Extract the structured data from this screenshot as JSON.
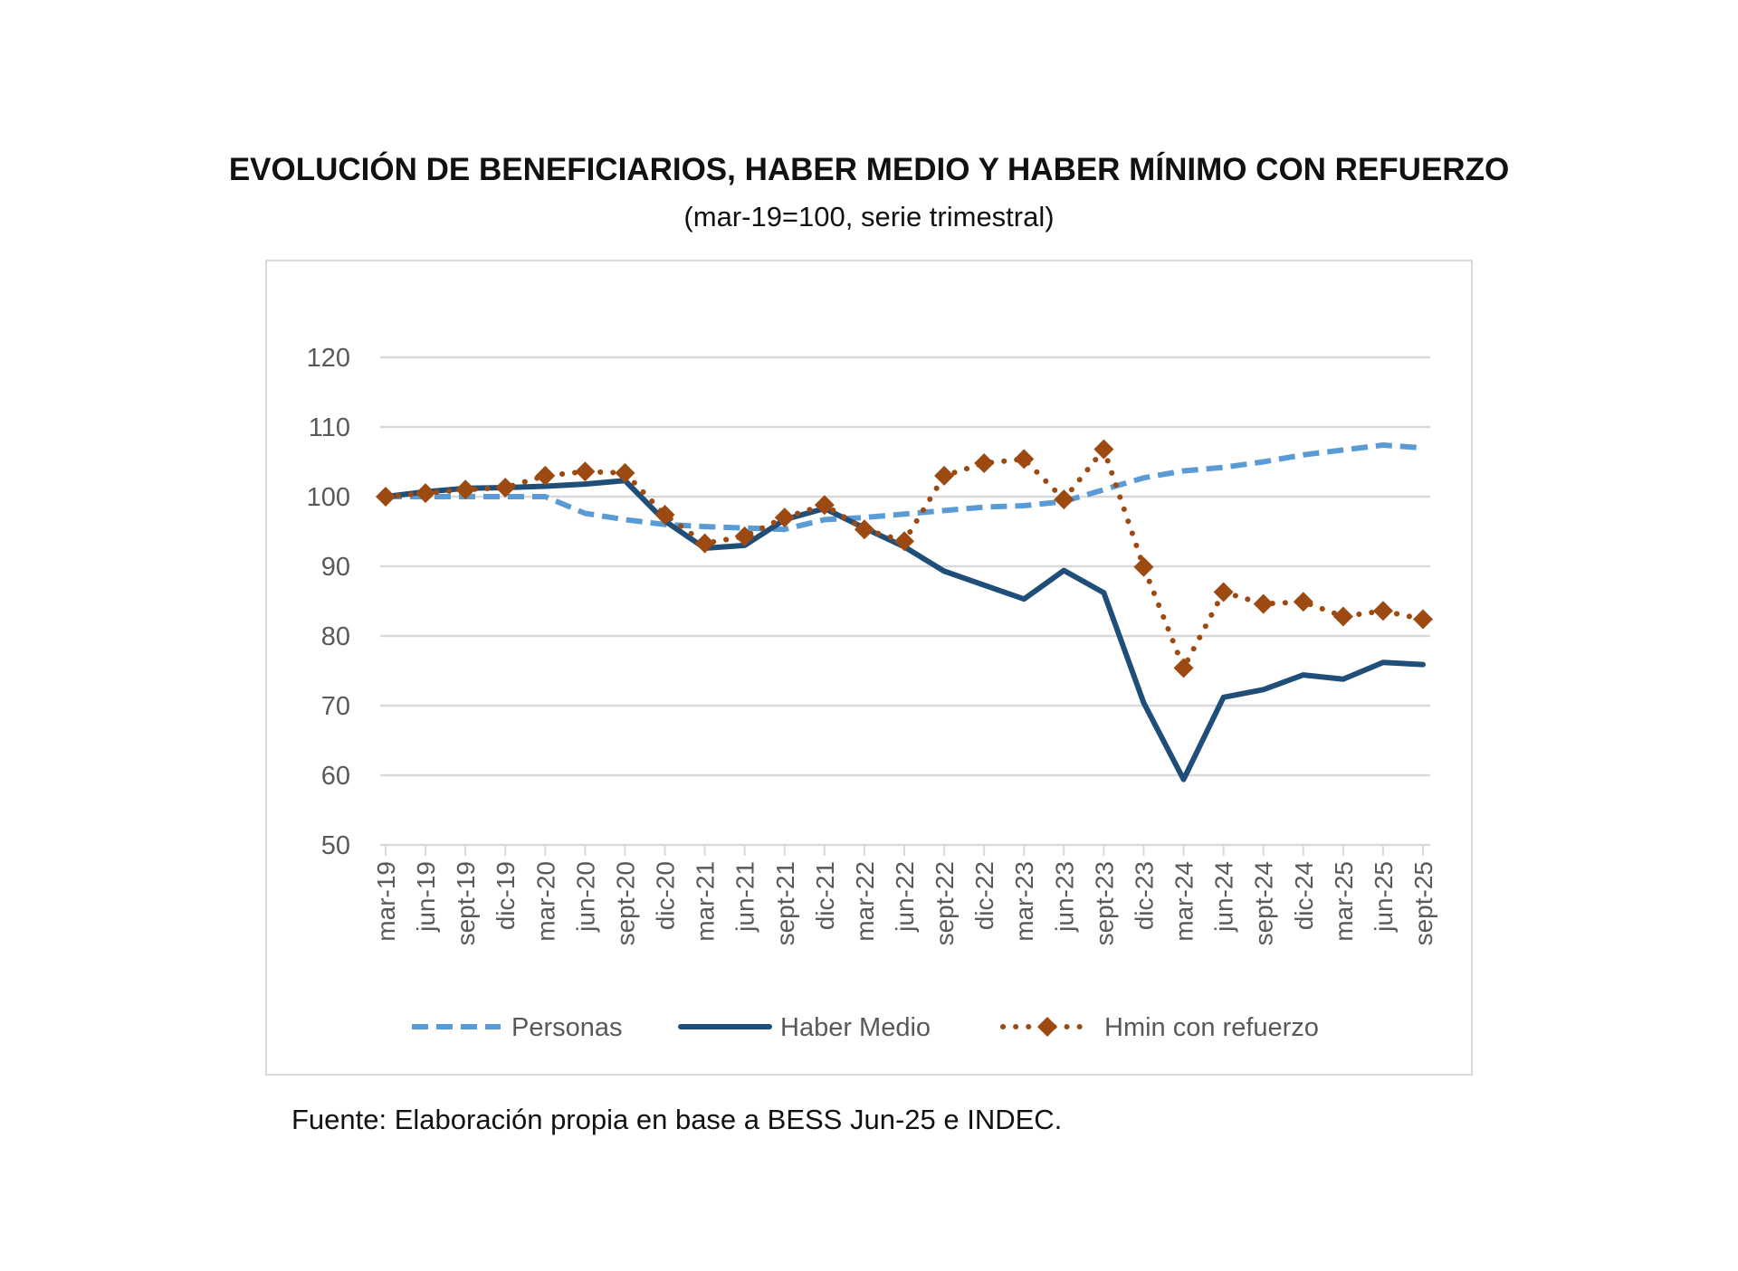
{
  "chart_data": {
    "type": "line",
    "title": "EVOLUCIÓN DE BENEFICIARIOS, HABER MEDIO Y HABER MÍNIMO CON REFUERZO",
    "subtitle": "(mar-19=100, serie trimestral)",
    "xlabel": "",
    "ylabel": "",
    "ylim": [
      50,
      120
    ],
    "yticks": [
      50,
      60,
      70,
      80,
      90,
      100,
      110,
      120
    ],
    "grid": true,
    "legend_position": "bottom",
    "categories": [
      "mar-19",
      "jun-19",
      "sept-19",
      "dic-19",
      "mar-20",
      "jun-20",
      "sept-20",
      "dic-20",
      "mar-21",
      "jun-21",
      "sept-21",
      "dic-21",
      "mar-22",
      "jun-22",
      "sept-22",
      "dic-22",
      "mar-23",
      "jun-23",
      "sept-23",
      "dic-23",
      "mar-24",
      "jun-24",
      "sept-24",
      "dic-24",
      "mar-25",
      "jun-25",
      "sept-25"
    ],
    "series": [
      {
        "name": "Personas",
        "color": "#5b9bd5",
        "style": "dashed",
        "values": [
          100,
          100,
          100,
          100,
          100,
          97.6,
          96.7,
          96,
          95.7,
          95.5,
          95.3,
          96.7,
          97,
          97.5,
          98,
          98.5,
          98.7,
          99.3,
          101,
          102.7,
          103.7,
          104.2,
          105,
          106,
          106.7,
          107.4,
          107
        ]
      },
      {
        "name": "Haber Medio",
        "color": "#1f4e79",
        "style": "solid",
        "values": [
          100,
          100.7,
          101.2,
          101.3,
          101.5,
          101.8,
          102.3,
          96.5,
          92.6,
          93,
          96.7,
          98.3,
          95.5,
          92.8,
          89.3,
          87.3,
          85.3,
          89.4,
          86.2,
          70.4,
          59.4,
          71.2,
          72.3,
          74.4,
          73.8,
          76.2,
          75.9
        ]
      },
      {
        "name": "Hmin con refuerzo",
        "color": "#9c4a12",
        "style": "dotted-diamond",
        "values": [
          100,
          100.5,
          101,
          101.3,
          103,
          103.6,
          103.4,
          97.4,
          93.3,
          94.3,
          97,
          98.8,
          95.3,
          93.6,
          103,
          104.8,
          105.4,
          99.6,
          106.8,
          89.9,
          75.4,
          86.3,
          84.6,
          84.9,
          82.8,
          83.6,
          82.4
        ]
      }
    ]
  },
  "source": "Fuente: Elaboración propia en base a BESS Jun-25 e INDEC."
}
